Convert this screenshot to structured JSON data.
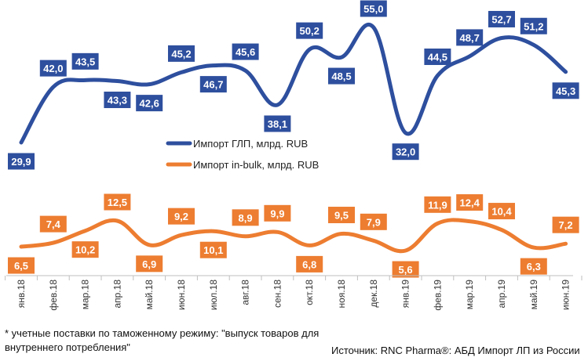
{
  "chart_data": {
    "type": "line",
    "categories": [
      "янв.18",
      "фев.18",
      "мар.18",
      "апр.18",
      "май.18",
      "июн.18",
      "июл.18",
      "авг.18",
      "сен.18",
      "окт.18",
      "ноя.18",
      "дек.18",
      "янв.19",
      "фев.19",
      "мар.19",
      "апр.19",
      "май.19",
      "июн.19"
    ],
    "series": [
      {
        "name": "Импорт ГЛП, млрд. RUB",
        "values": [
          29.9,
          42.0,
          43.5,
          43.3,
          42.6,
          45.2,
          46.7,
          45.6,
          38.1,
          50.2,
          48.5,
          55.0,
          32.0,
          44.5,
          48.7,
          52.7,
          51.2,
          45.3
        ],
        "labels": [
          "29,9",
          "42,0",
          "43,5",
          "43,3",
          "42,6",
          "45,2",
          "46,7",
          "45,6",
          "38,1",
          "50,2",
          "48,5",
          "55,0",
          "32,0",
          "44,5",
          "48,7",
          "52,7",
          "51,2",
          "45,3"
        ],
        "color": "#2E4F9E"
      },
      {
        "name": "Импорт in-bulk, млрд. RUB",
        "values": [
          6.5,
          7.4,
          10.2,
          12.5,
          6.9,
          9.2,
          10.1,
          8.9,
          9.9,
          6.8,
          9.5,
          7.9,
          5.6,
          11.9,
          12.4,
          10.4,
          6.3,
          7.2
        ],
        "labels": [
          "6,5",
          "7,4",
          "10,2",
          "12,5",
          "6,9",
          "9,2",
          "10,1",
          "8,9",
          "9,9",
          "6,8",
          "9,5",
          "7,9",
          "5,6",
          "11,9",
          "12,4",
          "10,4",
          "6,3",
          "7,2"
        ],
        "color": "#ED7D31"
      }
    ],
    "grid": false,
    "legend_position": "center-left"
  },
  "footnote": "* учетные поставки по таможенному режиму: \"выпуск товаров для внутреннего потребления\"",
  "source": "Источник: RNC Pharma®: АБД Импорт ЛП из России"
}
